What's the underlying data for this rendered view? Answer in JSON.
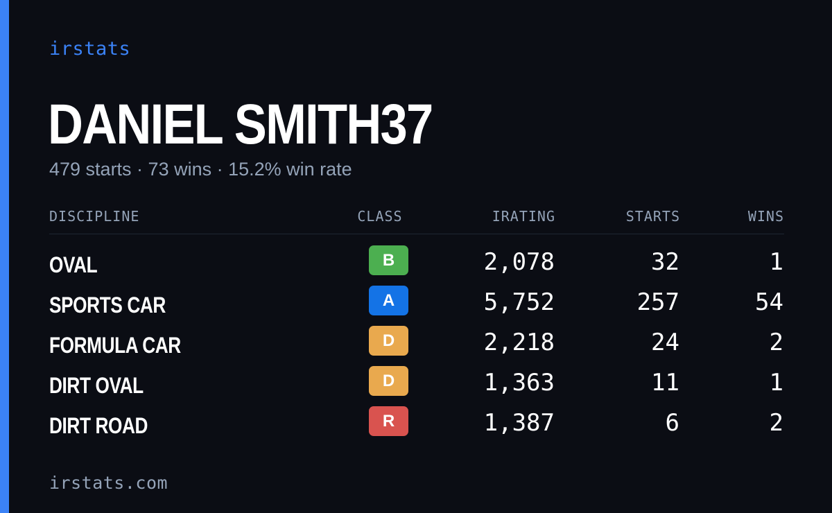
{
  "brand": "irstats",
  "driver": {
    "name": "DANIEL SMITH37",
    "summary": "479 starts · 73 wins · 15.2% win rate"
  },
  "table": {
    "headers": {
      "discipline": "DISCIPLINE",
      "class": "CLASS",
      "irating": "IRATING",
      "starts": "STARTS",
      "wins": "WINS"
    },
    "rows": [
      {
        "discipline": "OVAL",
        "class": "B",
        "irating": "2,078",
        "starts": "32",
        "wins": "1"
      },
      {
        "discipline": "SPORTS CAR",
        "class": "A",
        "irating": "5,752",
        "starts": "257",
        "wins": "54"
      },
      {
        "discipline": "FORMULA CAR",
        "class": "D",
        "irating": "2,218",
        "starts": "24",
        "wins": "2"
      },
      {
        "discipline": "DIRT OVAL",
        "class": "D",
        "irating": "1,363",
        "starts": "11",
        "wins": "1"
      },
      {
        "discipline": "DIRT ROAD",
        "class": "R",
        "irating": "1,387",
        "starts": "6",
        "wins": "2"
      }
    ]
  },
  "class_colors": {
    "A": "#1473e6",
    "B": "#4caf50",
    "C": "#f5c542",
    "D": "#e9a94e",
    "R": "#d9534f"
  },
  "footer": {
    "url": "irstats.com"
  },
  "colors": {
    "background": "#0b0d14",
    "accent": "#3b82f6",
    "muted_text": "#94a3b8",
    "primary_text": "#ffffff"
  }
}
